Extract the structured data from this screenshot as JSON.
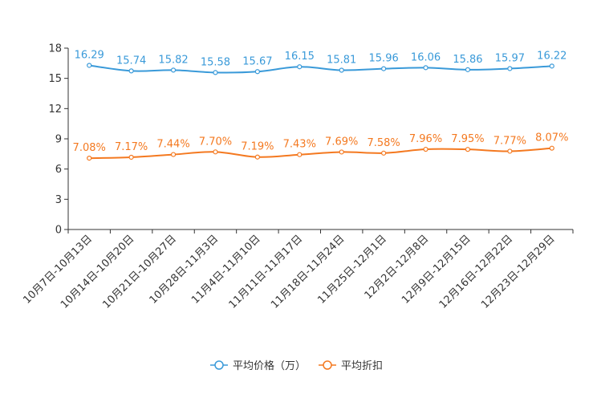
{
  "chart_data": {
    "type": "line",
    "title": "",
    "xlabel": "",
    "ylabel": "",
    "ylim": [
      0,
      18
    ],
    "yticks": [
      0,
      3,
      6,
      9,
      12,
      15,
      18
    ],
    "grid": false,
    "legend_position": "bottom-center",
    "categories": [
      "10月7日-10月13日",
      "10月14日-10月20日",
      "10月21日-10月27日",
      "10月28日-11月3日",
      "11月4日-11月10日",
      "11月11日-11月17日",
      "11月18日-11月24日",
      "11月25日-12月1日",
      "12月2日-12月8日",
      "12月9日-12月15日",
      "12月16日-12月22日",
      "12月23日-12月29日"
    ],
    "series": [
      {
        "name": "平均价格（万）",
        "color": "#3a9ad9",
        "values": [
          16.29,
          15.74,
          15.82,
          15.58,
          15.67,
          16.15,
          15.81,
          15.96,
          16.06,
          15.86,
          15.97,
          16.22
        ],
        "labels": [
          "16.29",
          "15.74",
          "15.82",
          "15.58",
          "15.67",
          "16.15",
          "15.81",
          "15.96",
          "16.06",
          "15.86",
          "15.97",
          "16.22"
        ]
      },
      {
        "name": "平均折扣",
        "color": "#f47920",
        "values": [
          7.08,
          7.17,
          7.44,
          7.7,
          7.19,
          7.43,
          7.69,
          7.58,
          7.96,
          7.95,
          7.77,
          8.07
        ],
        "labels": [
          "7.08%",
          "7.17%",
          "7.44%",
          "7.70%",
          "7.19%",
          "7.43%",
          "7.69%",
          "7.58%",
          "7.96%",
          "7.95%",
          "7.77%",
          "8.07%"
        ]
      }
    ]
  }
}
